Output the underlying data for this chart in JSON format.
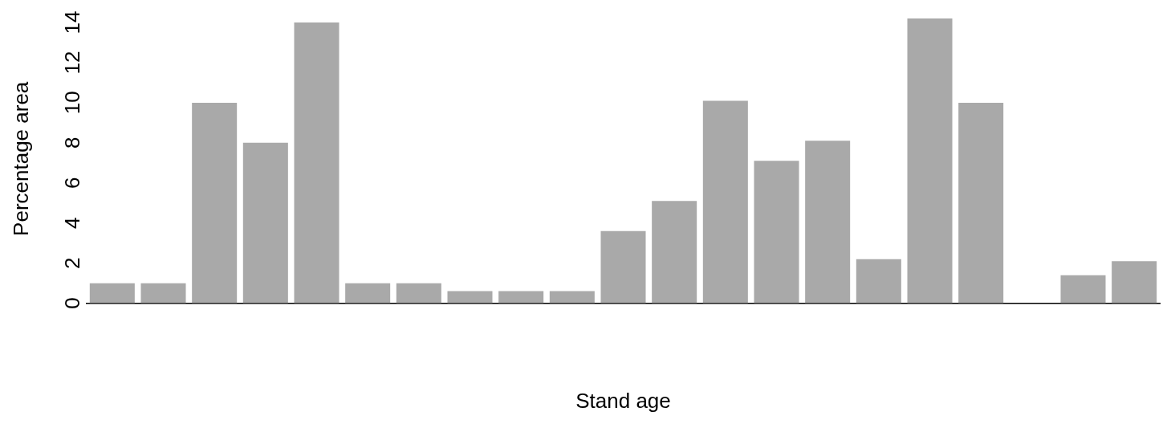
{
  "chart_data": {
    "type": "bar",
    "xlabel": "Stand age",
    "ylabel": "Percentage area",
    "categories": [
      null,
      null,
      null,
      null,
      null,
      null,
      null,
      null,
      null,
      null,
      null,
      null,
      null,
      null,
      null,
      null,
      null,
      null,
      null,
      null,
      null
    ],
    "values": [
      1,
      1,
      10,
      8,
      14,
      1,
      1,
      0.6,
      0.6,
      0.6,
      3.6,
      5.1,
      10.1,
      7.1,
      8.1,
      2.2,
      14.2,
      10,
      null,
      1.4,
      2.1
    ],
    "color": "#a9a9a9",
    "ylim": [
      0,
      14.4
    ],
    "yticks": [
      0,
      2,
      4,
      6,
      8,
      10,
      12,
      14
    ],
    "grid": false,
    "legend": false
  }
}
